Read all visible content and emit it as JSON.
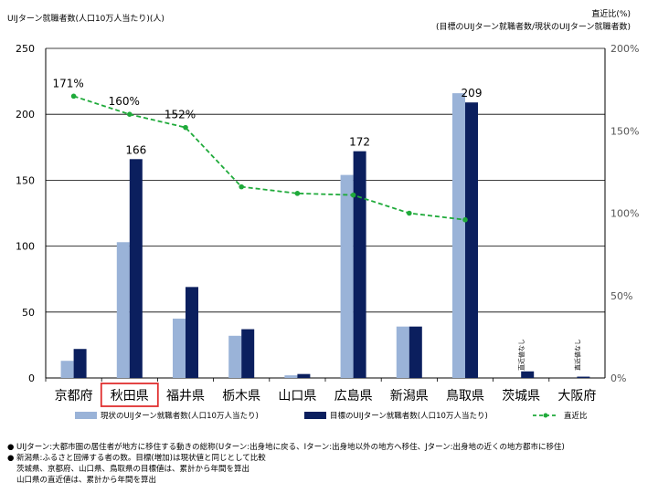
{
  "header": {
    "left_axis_title": "UIJターン就職者数(人口10万人当たり)(人)",
    "right_axis_title_1": "直近比(%)",
    "right_axis_title_2": "(目標のUIJターン就職者数/現状のUIJターン就職者数)"
  },
  "chart_data": {
    "type": "bar",
    "categories": [
      "京都府",
      "秋田県",
      "福井県",
      "栃木県",
      "山口県",
      "広島県",
      "新潟県",
      "鳥取県",
      "茨城県",
      "大阪府"
    ],
    "highlighted_category": "秋田県",
    "highlight_color": "#e03030",
    "series": [
      {
        "name": "現状のUIJターン就職者数(人口10万人当たり)",
        "kind": "bar",
        "axis": "left",
        "color": "#9ab3d8",
        "values": [
          13,
          103,
          45,
          32,
          2,
          154,
          39,
          216,
          0,
          0
        ]
      },
      {
        "name": "目標のUIJターン就職者数(人口10万人当たり)",
        "kind": "bar",
        "axis": "left",
        "color": "#0b1f5e",
        "values": [
          22,
          166,
          69,
          37,
          3,
          172,
          39,
          209,
          5,
          1
        ]
      },
      {
        "name": "直近比",
        "kind": "line",
        "axis": "right",
        "color": "#1faa3a",
        "style": "dashed",
        "marker": "circle",
        "values": [
          171,
          160,
          152,
          116,
          112,
          111,
          100,
          96,
          null,
          null
        ]
      }
    ],
    "bar_data_labels": [
      {
        "category": "秋田県",
        "series": 1,
        "text": "166"
      },
      {
        "category": "広島県",
        "series": 1,
        "text": "172"
      },
      {
        "category": "鳥取県",
        "series": 1,
        "text": "209"
      }
    ],
    "line_data_labels": [
      {
        "category": "京都府",
        "text": "171%"
      },
      {
        "category": "秋田県",
        "text": "160%"
      },
      {
        "category": "福井県",
        "text": "152%"
      }
    ],
    "no_data_labels": [
      {
        "category": "茨城県",
        "text": "直近値なし"
      },
      {
        "category": "大阪府",
        "text": "直近値なし"
      }
    ],
    "ylim_left": [
      0,
      250
    ],
    "yticks_left": [
      "0",
      "50",
      "100",
      "150",
      "200",
      "250"
    ],
    "ylim_right": [
      0,
      200
    ],
    "yticks_right": [
      "0%",
      "50%",
      "100%",
      "150%",
      "200%"
    ],
    "grid": true,
    "legend_position": "bottom"
  },
  "notes": [
    {
      "bullet": "●",
      "text": "UIJターン:大都市圏の居住者が地方に移住する動きの総称(Uターン:出身地に戻る、Iターン:出身地以外の地方へ移住、Jターン:出身地の近くの地方都市に移住)"
    },
    {
      "bullet": "●",
      "text": "新潟県:ふるさと回帰する者の数。目標(増加)は現状値と同じとして比較"
    },
    {
      "bullet": "",
      "text": "茨城県、京都府、山口県、鳥取県の目標値は、累計から年間を算出"
    },
    {
      "bullet": "",
      "text": "山口県の直近値は、累計から年間を算出"
    }
  ]
}
